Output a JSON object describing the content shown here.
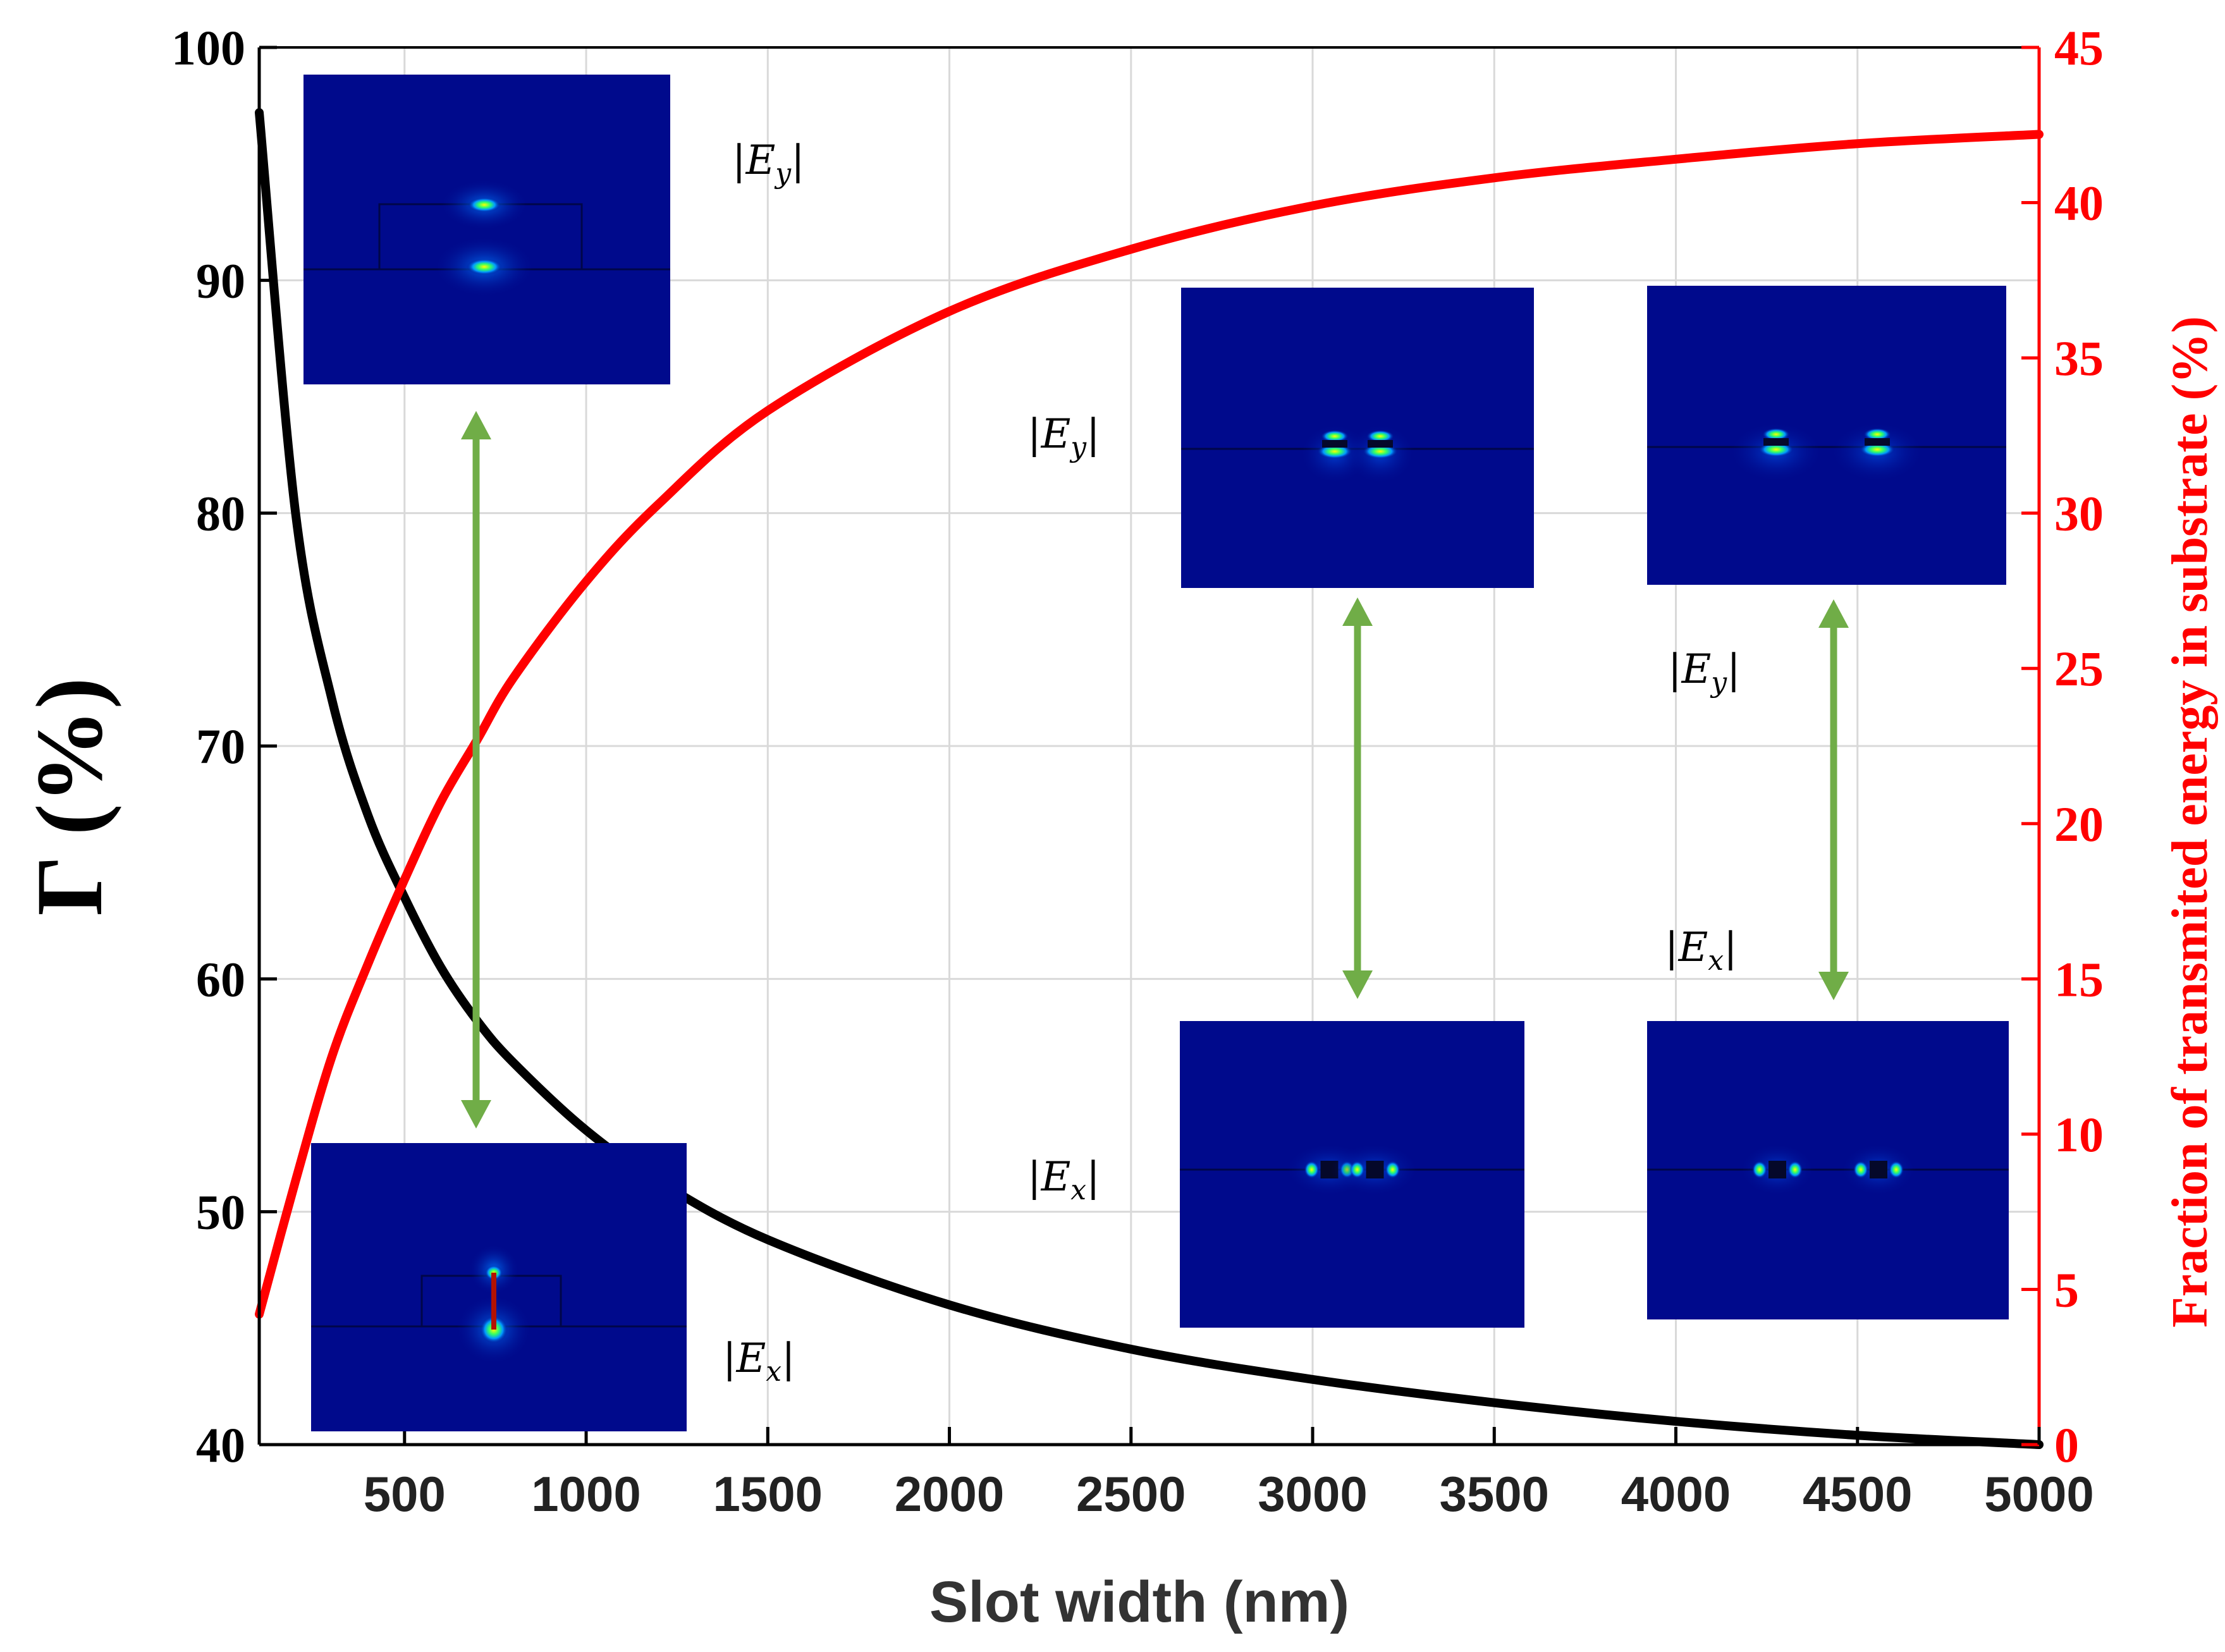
{
  "colors": {
    "gamma_line": "#000000",
    "fraction_line": "#ff0000",
    "arrow": "#70ad47",
    "field_background": "#000a8c",
    "grid": "#d9d9d9"
  },
  "chart_data": {
    "type": "line",
    "xlabel": "Slot width (nm)",
    "ylabel": "Γ (%)",
    "y2label": "Fraction of transmited energy in substrate (%)",
    "xlim": [
      100,
      5000
    ],
    "ylim": [
      40,
      100
    ],
    "y2lim": [
      0,
      45
    ],
    "xticks": [
      500,
      1000,
      1500,
      2000,
      2500,
      3000,
      3500,
      4000,
      4500,
      5000
    ],
    "yticks": [
      40,
      50,
      60,
      70,
      80,
      90,
      100
    ],
    "y2ticks": [
      0,
      5,
      10,
      15,
      20,
      25,
      30,
      35,
      40,
      45
    ],
    "grid": true,
    "series": [
      {
        "axis": "left",
        "color": "#000000",
        "x": [
          100,
          200,
          300,
          400,
          500,
          600,
          700,
          800,
          1000,
          1200,
          1500,
          2000,
          2500,
          3000,
          3500,
          4000,
          4500,
          5000
        ],
        "y": [
          97.2,
          80,
          72,
          67,
          63.5,
          60.5,
          58.2,
          56.4,
          53.5,
          51.3,
          48.8,
          46,
          44.1,
          42.8,
          41.8,
          41,
          40.4,
          40
        ]
      },
      {
        "axis": "right",
        "color": "#ff0000",
        "x": [
          100,
          200,
          300,
          400,
          500,
          600,
          700,
          800,
          1000,
          1200,
          1500,
          2000,
          2500,
          3000,
          3500,
          4000,
          4500,
          5000
        ],
        "y": [
          4.2,
          8.5,
          12.5,
          15.5,
          18.2,
          20.7,
          22.7,
          24.7,
          27.8,
          30.3,
          33.3,
          36.5,
          38.5,
          39.9,
          40.8,
          41.4,
          41.9,
          42.2
        ]
      }
    ]
  },
  "insets": [
    {
      "label_main": "|E",
      "label_sub": "y",
      "label_end": "|"
    },
    {
      "label_main": "|E",
      "label_sub": "x",
      "label_end": "|"
    },
    {
      "label_main": "|E",
      "label_sub": "y",
      "label_end": "|"
    },
    {
      "label_main": "|E",
      "label_sub": "x",
      "label_end": "|"
    },
    {
      "label_main": "|E",
      "label_sub": "y",
      "label_end": "|"
    },
    {
      "label_main": "|E",
      "label_sub": "x",
      "label_end": "|"
    }
  ]
}
